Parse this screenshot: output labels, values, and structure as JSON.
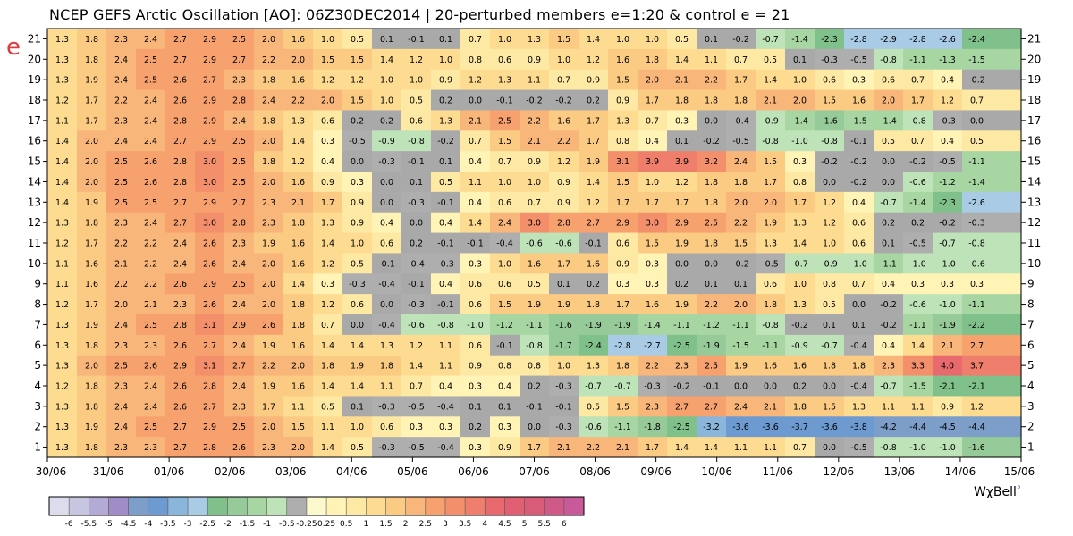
{
  "title": "NCEP GEFS Arctic Oscillation [AO]: 06Z30DEC2014 | 20-perturbed members  e=1:20  &  control e = 21",
  "y_axis_letter": "e",
  "brand": "WχBell",
  "brand_mark": "°",
  "colors": {
    "nan": "#a9a9a9",
    "scale": [
      "#dcdcec",
      "#c6c6e0",
      "#b4aad6",
      "#a08dc8",
      "#7c9ec9",
      "#6d9ad0",
      "#8ab6dc",
      "#a9cbe6",
      "#80c08a",
      "#96ca98",
      "#a8d6a3",
      "#bfe3b8",
      "#aeaeae",
      "#fdf9cf",
      "#fff3b6",
      "#fde9a3",
      "#fddc92",
      "#fbcb83",
      "#f9b67a",
      "#f7a26e",
      "#f48f6b",
      "#ef7e6c",
      "#e86a6f",
      "#e05f73",
      "#d85b78",
      "#cf5a88",
      "#c85a99"
    ]
  },
  "chart_data": {
    "type": "heatmap",
    "title": "NCEP GEFS Arctic Oscillation [AO]: 06Z30DEC2014 | 20-perturbed members  e=1:20  &  control e = 21",
    "x_tick_labels": [
      "30/06",
      "31/06",
      "01/06",
      "02/06",
      "03/06",
      "04/06",
      "05/06",
      "06/06",
      "07/06",
      "08/06",
      "09/06",
      "10/06",
      "11/06",
      "12/06",
      "13/06",
      "14/06",
      "15/06"
    ],
    "y_tick_labels": [
      "21",
      "20",
      "19",
      "18",
      "17",
      "16",
      "15",
      "14",
      "13",
      "12",
      "11",
      "10",
      "9",
      "8",
      "7",
      "6",
      "5",
      "4",
      "3",
      "2",
      "1"
    ],
    "colorbar_labels": [
      "-6",
      "-5.5",
      "-5",
      "-4.5",
      "-4",
      "-3.5",
      "-3",
      "-2.5",
      "-2",
      "-1.5",
      "-1",
      "-0.5",
      "-0.25",
      "0.25",
      "0.5",
      "1",
      "1.5",
      "2",
      "2.5",
      "3",
      "3.5",
      "4",
      "4.5",
      "5",
      "5.5",
      "6"
    ],
    "rows": [
      {
        "member": "21",
        "values": [
          1.3,
          1.8,
          2.3,
          2.4,
          2.7,
          2.9,
          2.5,
          2.0,
          1.6,
          1.0,
          0.5,
          0.1,
          -0.1,
          0.1,
          0.7,
          1.0,
          1.3,
          1.5,
          1.4,
          1.0,
          1.0,
          0.5,
          0.1,
          -0.2,
          -0.7,
          -1.4,
          -2.3,
          -2.8,
          -2.9,
          -2.8,
          -2.6,
          -2.4,
          -2.4
        ]
      },
      {
        "member": "20",
        "values": [
          1.3,
          1.8,
          2.4,
          2.5,
          2.7,
          2.9,
          2.7,
          2.2,
          2.0,
          1.5,
          1.5,
          1.4,
          1.2,
          1.0,
          0.8,
          0.6,
          0.9,
          1.0,
          1.2,
          1.6,
          1.8,
          1.4,
          1.1,
          0.7,
          0.5,
          0.1,
          -0.3,
          -0.5,
          -0.8,
          -1.1,
          -1.3,
          -1.5,
          -1.5
        ]
      },
      {
        "member": "19",
        "values": [
          1.3,
          1.9,
          2.4,
          2.5,
          2.6,
          2.7,
          2.3,
          1.8,
          1.6,
          1.2,
          1.2,
          1.0,
          1.0,
          0.9,
          1.2,
          1.3,
          1.1,
          0.7,
          0.9,
          1.5,
          2.0,
          2.1,
          2.2,
          1.7,
          1.4,
          1.0,
          0.6,
          0.3,
          0.6,
          0.7,
          0.4,
          -0.2,
          -0.2
        ]
      },
      {
        "member": "18",
        "values": [
          1.2,
          1.7,
          2.2,
          2.4,
          2.6,
          2.9,
          2.8,
          2.4,
          2.2,
          2.0,
          1.5,
          1.0,
          0.5,
          0.2,
          0.0,
          -0.1,
          -0.2,
          -0.2,
          0.2,
          0.9,
          1.7,
          1.8,
          1.8,
          1.8,
          2.1,
          2.0,
          1.5,
          1.6,
          2.0,
          1.7,
          1.2,
          0.7,
          0.7
        ]
      },
      {
        "member": "17",
        "values": [
          1.1,
          1.7,
          2.3,
          2.4,
          2.8,
          2.9,
          2.4,
          1.8,
          1.3,
          0.6,
          0.2,
          0.2,
          0.6,
          1.3,
          2.1,
          2.5,
          2.2,
          1.6,
          1.7,
          1.3,
          0.7,
          0.3,
          0.0,
          -0.4,
          -0.9,
          -1.4,
          -1.6,
          -1.5,
          -1.4,
          -0.8,
          -0.3,
          -0.0,
          -0.0
        ]
      },
      {
        "member": "16",
        "values": [
          1.4,
          2.0,
          2.4,
          2.4,
          2.7,
          2.9,
          2.5,
          2.0,
          1.4,
          0.3,
          -0.5,
          -0.9,
          -0.8,
          -0.2,
          0.7,
          1.5,
          2.1,
          2.2,
          1.7,
          0.8,
          0.4,
          0.1,
          -0.2,
          -0.5,
          -0.8,
          -1.0,
          -0.8,
          -0.1,
          0.5,
          0.7,
          0.4,
          0.5,
          0.5
        ]
      },
      {
        "member": "15",
        "values": [
          1.4,
          2.0,
          2.5,
          2.6,
          2.8,
          3.0,
          2.5,
          1.8,
          1.2,
          0.4,
          -0.0,
          -0.3,
          -0.1,
          0.1,
          0.4,
          0.7,
          0.9,
          1.2,
          1.9,
          3.1,
          3.9,
          3.9,
          3.2,
          2.4,
          1.5,
          0.3,
          -0.2,
          -0.2,
          -0.0,
          -0.2,
          -0.5,
          -1.1,
          -1.1
        ]
      },
      {
        "member": "14",
        "values": [
          1.4,
          2.0,
          2.5,
          2.6,
          2.8,
          3.0,
          2.5,
          2.0,
          1.6,
          0.9,
          0.3,
          -0.0,
          0.1,
          0.5,
          1.1,
          1.0,
          1.0,
          0.9,
          1.4,
          1.5,
          1.0,
          1.2,
          1.8,
          1.8,
          1.7,
          0.8,
          0.0,
          -0.2,
          -0.0,
          -0.6,
          -1.2,
          -1.4,
          -1.4
        ]
      },
      {
        "member": "13",
        "values": [
          1.4,
          1.9,
          2.5,
          2.5,
          2.7,
          2.9,
          2.7,
          2.3,
          2.1,
          1.7,
          0.9,
          -0.0,
          -0.3,
          -0.1,
          0.4,
          0.6,
          0.7,
          0.9,
          1.2,
          1.7,
          1.7,
          1.7,
          1.8,
          2.0,
          2.0,
          1.7,
          1.2,
          0.4,
          -0.7,
          -1.4,
          -2.3,
          -2.6,
          -2.6
        ]
      },
      {
        "member": "12",
        "values": [
          1.3,
          1.8,
          2.3,
          2.4,
          2.7,
          3.0,
          2.8,
          2.3,
          1.8,
          1.3,
          0.9,
          0.4,
          0.0,
          0.4,
          1.4,
          2.4,
          3.0,
          2.8,
          2.7,
          2.9,
          3.0,
          2.9,
          2.5,
          2.2,
          1.9,
          1.3,
          1.2,
          0.6,
          0.2,
          0.2,
          -0.2,
          -0.3,
          -0.3
        ]
      },
      {
        "member": "11",
        "values": [
          1.2,
          1.7,
          2.2,
          2.2,
          2.4,
          2.6,
          2.3,
          1.9,
          1.6,
          1.4,
          1.0,
          0.6,
          0.2,
          -0.1,
          -0.1,
          -0.4,
          -0.6,
          -0.6,
          -0.1,
          0.6,
          1.5,
          1.9,
          1.8,
          1.5,
          1.3,
          1.4,
          1.0,
          0.6,
          0.1,
          -0.5,
          -0.7,
          -0.8,
          -0.8
        ]
      },
      {
        "member": "10",
        "values": [
          1.1,
          1.6,
          2.1,
          2.2,
          2.4,
          2.6,
          2.4,
          2.0,
          1.6,
          1.2,
          0.5,
          -0.1,
          -0.4,
          -0.3,
          0.3,
          1.0,
          1.6,
          1.7,
          1.6,
          0.9,
          0.3,
          0.0,
          -0.0,
          -0.2,
          -0.5,
          -0.7,
          -0.9,
          -1.0,
          -1.1,
          -1.0,
          -1.0,
          -0.6,
          -0.6
        ]
      },
      {
        "member": "9",
        "values": [
          1.1,
          1.6,
          2.2,
          2.2,
          2.6,
          2.9,
          2.5,
          2.0,
          1.4,
          0.3,
          -0.3,
          -0.4,
          -0.1,
          0.4,
          0.6,
          0.6,
          0.5,
          0.1,
          0.2,
          0.3,
          0.3,
          0.2,
          0.1,
          0.1,
          0.6,
          1.0,
          0.8,
          0.7,
          0.4,
          0.3,
          0.3,
          0.3,
          0.3
        ]
      },
      {
        "member": "8",
        "values": [
          1.2,
          1.7,
          2.0,
          2.1,
          2.3,
          2.6,
          2.4,
          2.0,
          1.8,
          1.2,
          0.6,
          0.0,
          -0.3,
          -0.1,
          0.6,
          1.5,
          1.9,
          1.9,
          1.8,
          1.7,
          1.6,
          1.9,
          2.2,
          2.0,
          1.8,
          1.3,
          0.5,
          -0.0,
          -0.2,
          -0.6,
          -1.0,
          -1.1,
          -1.1
        ]
      },
      {
        "member": "7",
        "values": [
          1.3,
          1.9,
          2.4,
          2.5,
          2.8,
          3.1,
          2.9,
          2.6,
          1.8,
          0.7,
          -0.0,
          -0.4,
          -0.6,
          -0.8,
          -1.0,
          -1.2,
          -1.1,
          -1.6,
          -1.9,
          -1.9,
          -1.4,
          -1.1,
          -1.2,
          -1.1,
          -0.8,
          -0.2,
          0.1,
          0.1,
          -0.2,
          -1.1,
          -1.9,
          -2.2,
          -2.2
        ]
      },
      {
        "member": "6",
        "values": [
          1.3,
          1.8,
          2.3,
          2.3,
          2.6,
          2.7,
          2.4,
          1.9,
          1.6,
          1.4,
          1.4,
          1.3,
          1.2,
          1.1,
          0.6,
          -0.1,
          -0.8,
          -1.7,
          -2.4,
          -2.8,
          -2.7,
          -2.5,
          -1.9,
          -1.5,
          -1.1,
          -0.9,
          -0.7,
          -0.4,
          0.4,
          1.4,
          2.1,
          2.7,
          2.7
        ]
      },
      {
        "member": "5",
        "values": [
          1.3,
          2.0,
          2.5,
          2.6,
          2.9,
          3.1,
          2.7,
          2.2,
          2.0,
          1.8,
          1.9,
          1.8,
          1.4,
          1.1,
          0.9,
          0.8,
          0.8,
          1.0,
          1.3,
          1.8,
          2.2,
          2.3,
          2.5,
          1.9,
          1.6,
          1.6,
          1.8,
          1.8,
          2.3,
          3.3,
          4.0,
          3.7,
          3.7
        ]
      },
      {
        "member": "4",
        "values": [
          1.2,
          1.8,
          2.3,
          2.4,
          2.6,
          2.8,
          2.4,
          1.9,
          1.6,
          1.4,
          1.4,
          1.1,
          0.7,
          0.4,
          0.3,
          0.4,
          0.2,
          -0.3,
          -0.7,
          -0.7,
          -0.3,
          -0.2,
          -0.1,
          -0.0,
          -0.0,
          0.2,
          0.0,
          -0.4,
          -0.7,
          -1.5,
          -2.1,
          -2.1,
          -2.1
        ]
      },
      {
        "member": "3",
        "values": [
          1.3,
          1.8,
          2.4,
          2.4,
          2.6,
          2.7,
          2.3,
          1.7,
          1.1,
          0.5,
          0.1,
          -0.3,
          -0.5,
          -0.4,
          0.1,
          0.1,
          -0.1,
          -0.1,
          0.5,
          1.5,
          2.3,
          2.7,
          2.7,
          2.4,
          2.1,
          1.8,
          1.5,
          1.3,
          1.1,
          1.1,
          0.9,
          1.2,
          1.2
        ]
      },
      {
        "member": "2",
        "values": [
          1.3,
          1.9,
          2.4,
          2.5,
          2.7,
          2.9,
          2.5,
          2.0,
          1.5,
          1.1,
          1.0,
          0.6,
          0.3,
          0.3,
          0.2,
          0.3,
          0.0,
          -0.3,
          -0.6,
          -1.1,
          -1.8,
          -2.5,
          -3.2,
          -3.6,
          -3.6,
          -3.7,
          -3.6,
          -3.8,
          -4.2,
          -4.4,
          -4.5,
          -4.4,
          -4.4
        ]
      },
      {
        "member": "1",
        "values": [
          1.3,
          1.8,
          2.3,
          2.3,
          2.7,
          2.8,
          2.6,
          2.3,
          2.0,
          1.4,
          0.5,
          -0.3,
          -0.5,
          -0.4,
          0.3,
          0.9,
          1.7,
          2.1,
          2.2,
          2.1,
          1.7,
          1.4,
          1.4,
          1.1,
          1.1,
          0.7,
          0.0,
          -0.5,
          -0.8,
          -1.0,
          -1.0,
          -1.6,
          -1.6
        ]
      }
    ]
  }
}
